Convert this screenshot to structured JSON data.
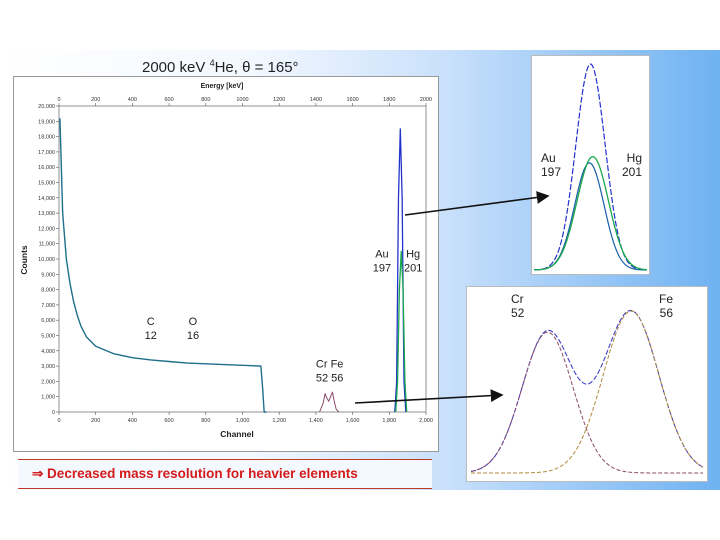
{
  "slide": {
    "title_prefix": "2000 keV ",
    "title_sup": "4",
    "title_suffix": "He, θ = 165°",
    "conclusion": "⇒ Decreased mass resolution for heavier elements"
  },
  "colors": {
    "spectrum": "#1f6f8b",
    "au": "#2233cc",
    "hg": "#1aa84a",
    "cr": "#8b4a6b",
    "fe": "#b08a3a",
    "envelope": "#4040c8",
    "conclusion": "#d31b1b"
  },
  "chart_data": [
    {
      "type": "line",
      "title": "",
      "top_xlabel": "Energy [keV]",
      "top_ticks": [
        "0",
        "200",
        "400",
        "600",
        "800",
        "1000",
        "1200",
        "1400",
        "1600",
        "1800",
        "2000"
      ],
      "xlabel": "Channel",
      "ylabel": "Counts",
      "xticks": [
        "0",
        "200",
        "400",
        "600",
        "800",
        "1,000",
        "1,200",
        "1,400",
        "1,600",
        "1,800",
        "2,000"
      ],
      "yticks": [
        "0",
        "1,000",
        "2,000",
        "3,000",
        "4,000",
        "5,000",
        "6,000",
        "7,000",
        "8,000",
        "9,000",
        "10,000",
        "11,000",
        "12,000",
        "13,000",
        "14,000",
        "15,000",
        "16,000",
        "17,000",
        "18,000",
        "19,000",
        "20,000"
      ],
      "xlim": [
        0,
        2000
      ],
      "ylim": [
        0,
        20000
      ],
      "series": [
        {
          "x": [
            5,
            20,
            40,
            60,
            80,
            100,
            120,
            150,
            200,
            300,
            400,
            500,
            600,
            700,
            800,
            900,
            1000,
            1050,
            1100,
            1110,
            1118,
            1130
          ],
          "y": [
            19200,
            13000,
            10000,
            8400,
            7200,
            6300,
            5600,
            4900,
            4300,
            3800,
            3550,
            3400,
            3300,
            3200,
            3150,
            3100,
            3050,
            3030,
            3000,
            1500,
            0,
            0
          ]
        },
        {
          "x": [
            1830,
            1840,
            1850,
            1860,
            1870,
            1880,
            1890
          ],
          "y": [
            0,
            2000,
            14000,
            18500,
            14000,
            2000,
            0
          ]
        },
        {
          "x": [
            1835,
            1845,
            1855,
            1865,
            1875,
            1885,
            1895
          ],
          "y": [
            0,
            2000,
            8000,
            10500,
            8000,
            2000,
            0
          ]
        },
        {
          "x": [
            1420,
            1440,
            1450,
            1460,
            1470,
            1480,
            1490,
            1500,
            1510,
            1525
          ],
          "y": [
            0,
            600,
            1200,
            900,
            700,
            1000,
            1300,
            700,
            200,
            0
          ]
        }
      ],
      "annotations": [
        {
          "text": "C",
          "sub": "12",
          "x": 500,
          "y": 5700
        },
        {
          "text": "O",
          "sub": "16",
          "x": 730,
          "y": 5700
        },
        {
          "text": "Cr Fe",
          "sub": "52 56",
          "x": 1475,
          "y": 2900
        },
        {
          "text": "Au",
          "sub": "197",
          "x": 1760,
          "y": 10100
        },
        {
          "text": "Hg",
          "sub": "201",
          "x": 1930,
          "y": 10100
        }
      ]
    },
    {
      "type": "line",
      "xlim": [
        0,
        100
      ],
      "ylim": [
        0,
        100
      ],
      "series": [
        {
          "name": "Au",
          "peak": {
            "center": 50,
            "sigma": 13,
            "amplitude": 100
          }
        },
        {
          "name": "Au",
          "peak": {
            "center": 49,
            "sigma": 13,
            "amplitude": 52
          }
        },
        {
          "name": "Hg",
          "peak": {
            "center": 52,
            "sigma": 14,
            "amplitude": 55
          }
        }
      ],
      "labels": [
        {
          "text": "Au",
          "sub": "197",
          "side": "left"
        },
        {
          "text": "Hg",
          "sub": "201",
          "side": "right"
        }
      ]
    },
    {
      "type": "line",
      "xlim": [
        0,
        100
      ],
      "ylim": [
        0,
        100
      ],
      "series": [
        {
          "name": "Cr",
          "peak": {
            "center": 33,
            "sigma": 11,
            "amplitude": 80
          }
        },
        {
          "name": "Fe",
          "peak": {
            "center": 69,
            "sigma": 12,
            "amplitude": 92
          }
        }
      ],
      "labels": [
        {
          "text": "Cr",
          "sub": "52",
          "side": "left"
        },
        {
          "text": "Fe",
          "sub": "56",
          "side": "right"
        }
      ]
    }
  ]
}
